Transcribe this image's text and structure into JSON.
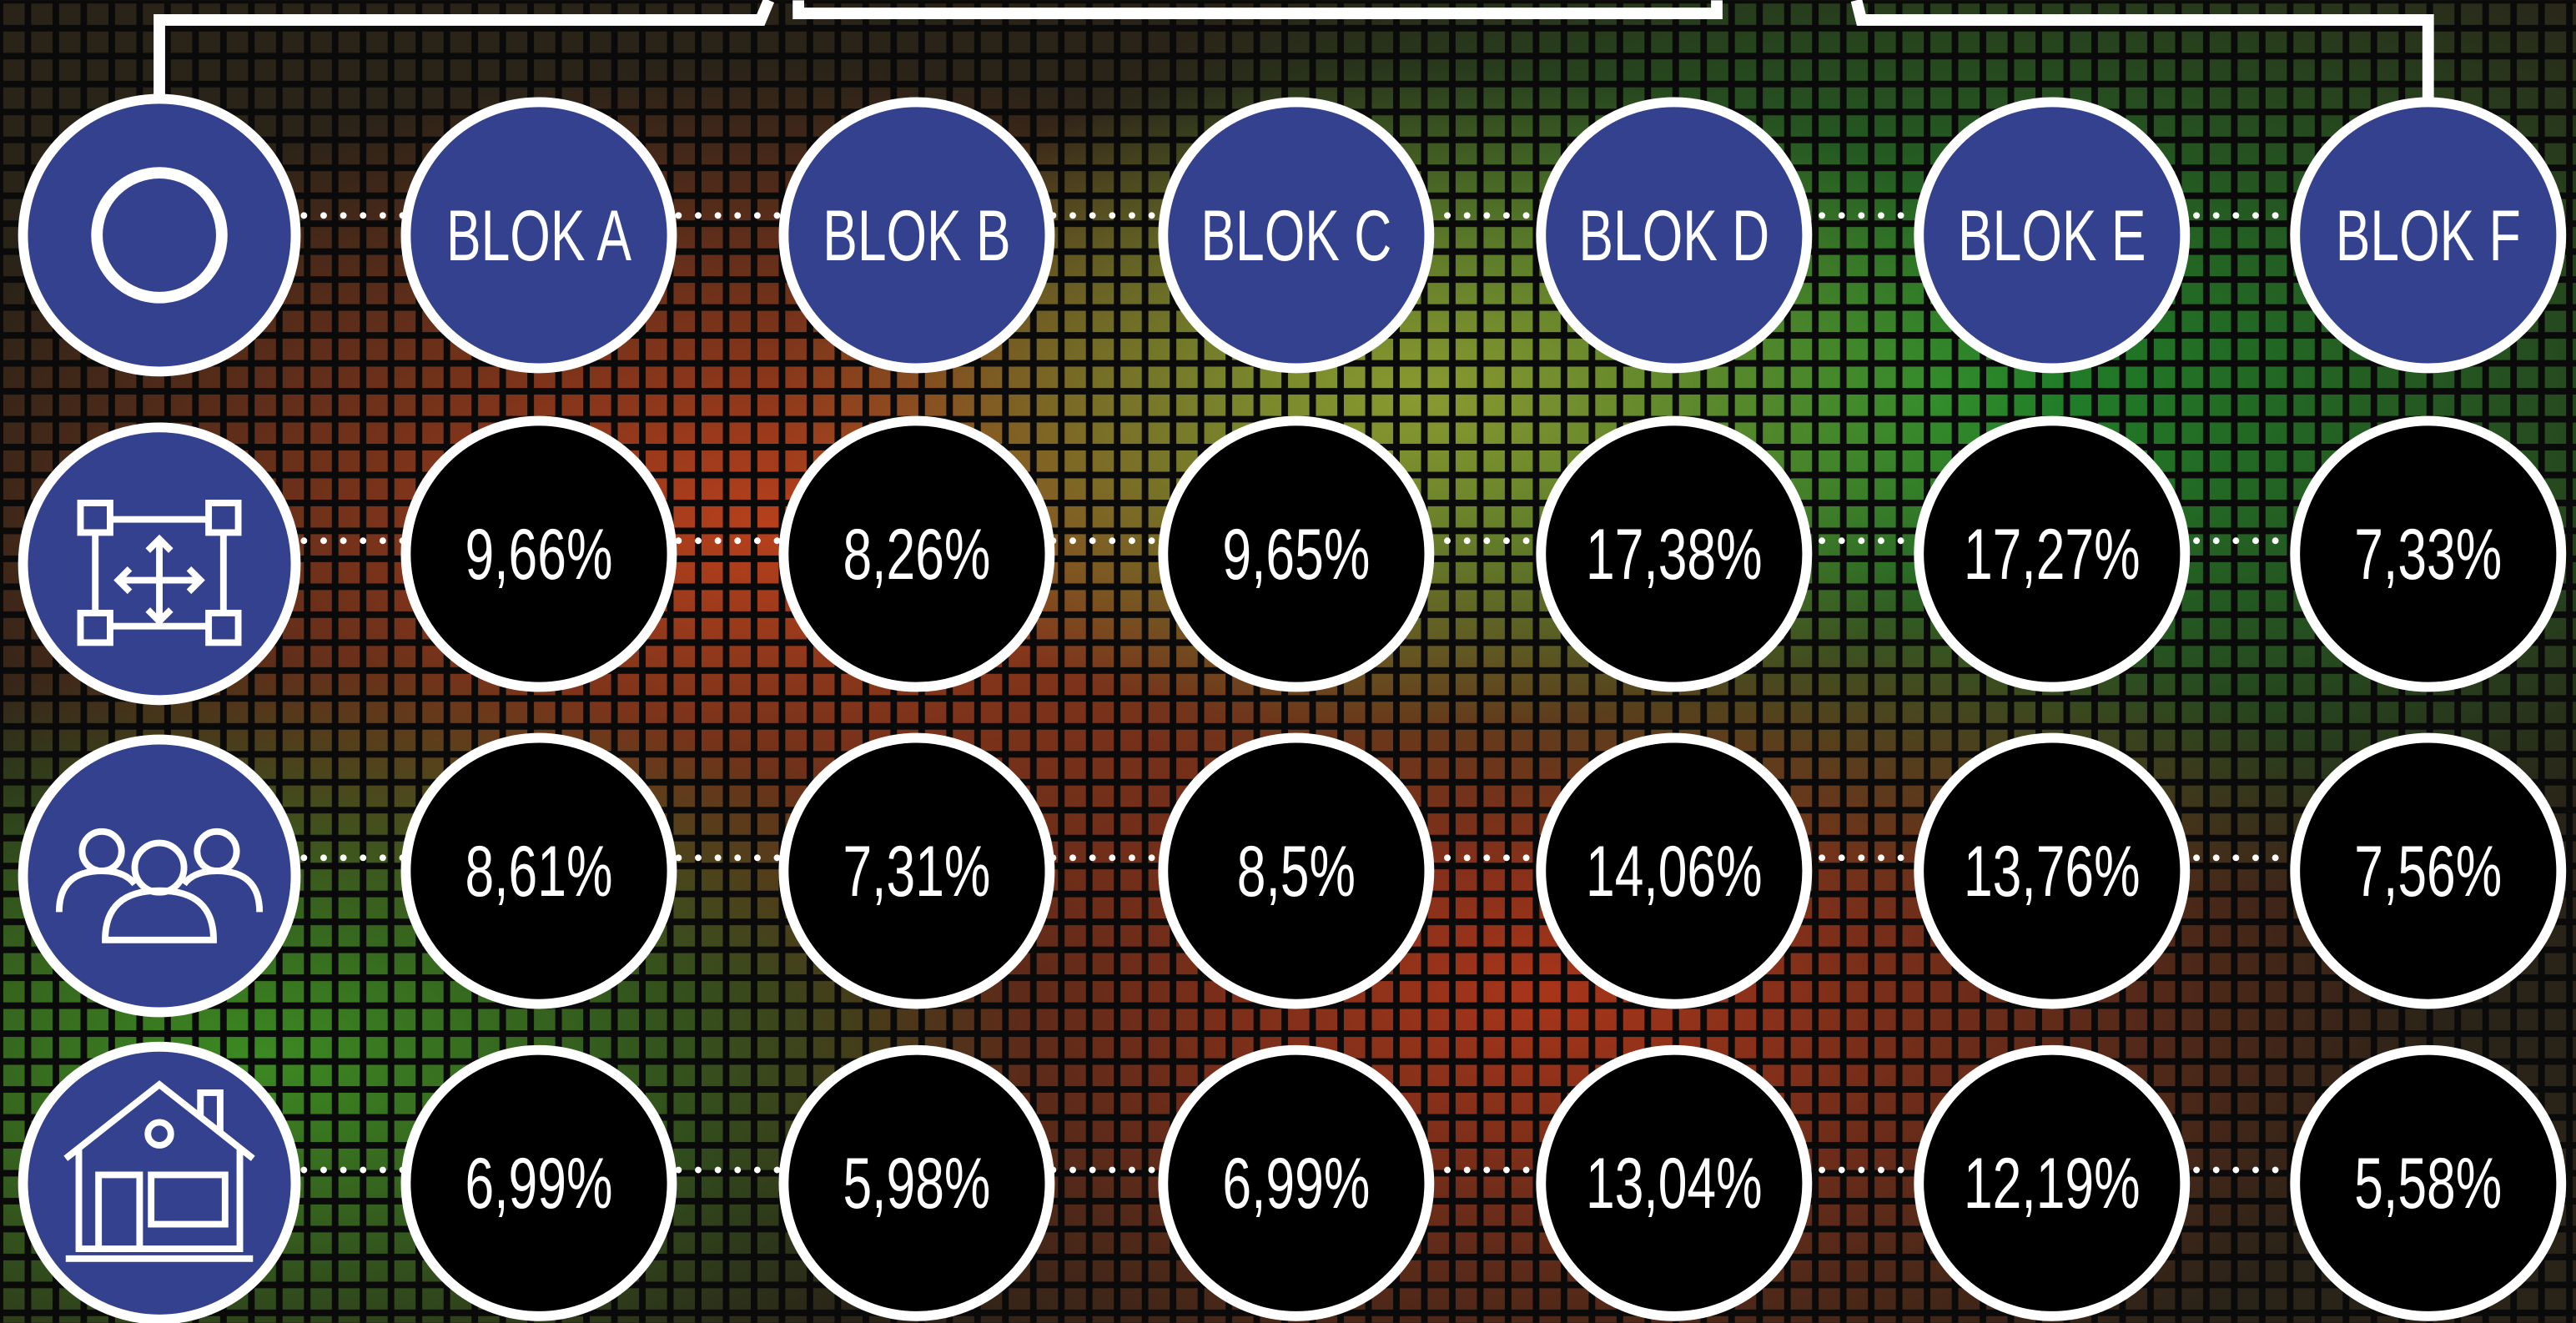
{
  "table": {
    "columns": [
      "BLOK A",
      "BLOK B",
      "BLOK C",
      "BLOK D",
      "BLOK E",
      "BLOK F"
    ],
    "rows": [
      [
        "9,66%",
        "8,26%",
        "9,65%",
        "17,38%",
        "17,27%",
        "7,33%"
      ],
      [
        "8,61%",
        "7,31%",
        "8,5%",
        "14,06%",
        "13,76%",
        "7,56%"
      ],
      [
        "6,99%",
        "5,98%",
        "6,99%",
        "13,04%",
        "12,19%",
        "5,58%"
      ]
    ]
  }
}
